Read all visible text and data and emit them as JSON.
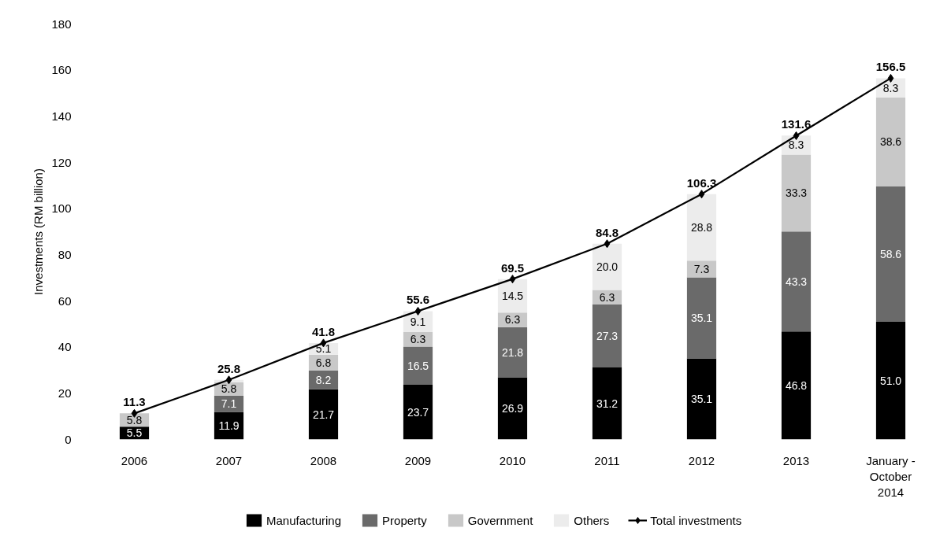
{
  "chart_data": {
    "type": "bar",
    "stacked": true,
    "ylabel": "Investments (RM billion)",
    "categories": [
      "2006",
      "2007",
      "2008",
      "2009",
      "2010",
      "2011",
      "2012",
      "2013",
      "January - October 2014"
    ],
    "ylim": [
      0,
      180
    ],
    "yticks": [
      0,
      20,
      40,
      60,
      80,
      100,
      120,
      140,
      160,
      180
    ],
    "grid": false,
    "legend": "bottom",
    "marker": "diamond",
    "series": [
      {
        "name": "Manufacturing",
        "color": "#000000",
        "values": [
          5.5,
          11.9,
          21.7,
          23.7,
          26.9,
          31.2,
          35.1,
          46.8,
          51.0
        ],
        "value_labels": [
          "5.5",
          "11.9",
          "21.7",
          "23.7",
          "26.9",
          "31.2",
          "35.1",
          "46.8",
          "51.0"
        ]
      },
      {
        "name": "Property",
        "color": "#6a6a6a",
        "values": [
          null,
          7.1,
          8.2,
          16.5,
          21.8,
          27.3,
          35.1,
          43.3,
          58.6
        ],
        "value_labels": [
          null,
          "7.1",
          "8.2",
          "16.5",
          "21.8",
          "27.3",
          "35.1",
          "43.3",
          "58.6"
        ]
      },
      {
        "name": "Government",
        "color": "#c8c8c8",
        "values": [
          5.8,
          5.8,
          6.8,
          6.3,
          6.3,
          6.3,
          7.3,
          33.3,
          38.6
        ],
        "value_labels": [
          "5.8",
          "5.8",
          "6.8",
          "6.3",
          "6.3",
          "6.3",
          "7.3",
          "33.3",
          "38.6"
        ]
      },
      {
        "name": "Others",
        "color": "#ececec",
        "values": [
          null,
          1.0,
          5.1,
          9.1,
          14.5,
          20.0,
          28.8,
          8.3,
          8.3
        ],
        "value_labels": [
          null,
          null,
          "5.1",
          "9.1",
          "14.5",
          "20.0",
          "28.8",
          "8.3",
          "8.3"
        ]
      },
      {
        "name": "Total investments",
        "type": "line",
        "color": "#000000",
        "values": [
          11.3,
          25.8,
          41.8,
          55.6,
          69.5,
          84.8,
          106.3,
          131.6,
          156.5
        ],
        "value_labels": [
          "11.3",
          "25.8",
          "41.8",
          "55.6",
          "69.5",
          "84.8",
          "106.3",
          "131.6",
          "156.5"
        ]
      }
    ]
  }
}
